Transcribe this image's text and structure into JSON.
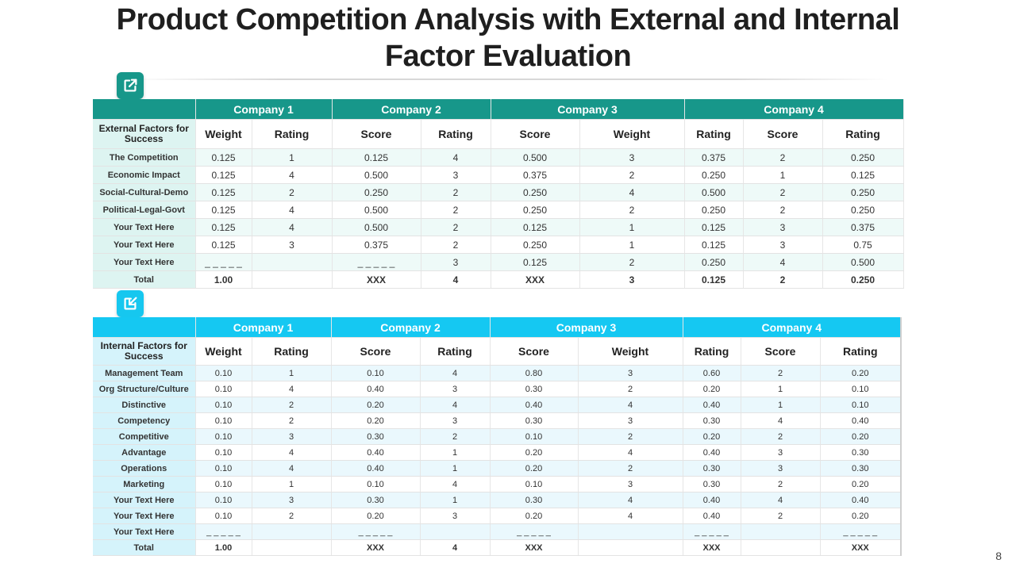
{
  "title_line1": "Product Competition Analysis with External and Internal",
  "title_line2": "Factor Evaluation",
  "page_number": "8",
  "colors": {
    "external_accent": "#17978a",
    "internal_accent": "#15c8f2"
  },
  "icons": {
    "external": "external-link-icon",
    "internal": "import-arrow-icon"
  },
  "external": {
    "companies": [
      "Company 1",
      "Company 2",
      "Company 3",
      "Company 4"
    ],
    "label_header": "External Factors for Success",
    "columns": [
      "Weight",
      "Rating",
      "Score",
      "Rating",
      "Score",
      "Weight",
      "Rating",
      "Score",
      "Rating"
    ],
    "rows": [
      [
        "The Competition",
        "0.125",
        "1",
        "0.125",
        "4",
        "0.500",
        "3",
        "0.375",
        "2",
        "0.250"
      ],
      [
        "Economic Impact",
        "0.125",
        "4",
        "0.500",
        "3",
        "0.375",
        "2",
        "0.250",
        "1",
        "0.125"
      ],
      [
        "Social-Cultural-Demo",
        "0.125",
        "2",
        "0.250",
        "2",
        "0.250",
        "4",
        "0.500",
        "2",
        "0.250"
      ],
      [
        "Political-Legal-Govt",
        "0.125",
        "4",
        "0.500",
        "2",
        "0.250",
        "2",
        "0.250",
        "2",
        "0.250"
      ],
      [
        "Your Text Here",
        "0.125",
        "4",
        "0.500",
        "2",
        "0.125",
        "1",
        "0.125",
        "3",
        "0.375"
      ],
      [
        "Your Text Here",
        "0.125",
        "3",
        "0.375",
        "2",
        "0.250",
        "1",
        "0.125",
        "3",
        "0.75"
      ],
      [
        "Your Text Here",
        "_ _ _ _ _",
        "",
        "_ _ _ _ _",
        "3",
        "0.125",
        "2",
        "0.250",
        "4",
        "0.500"
      ],
      [
        "Total",
        "1.00",
        "",
        "XXX",
        "4",
        "XXX",
        "3",
        "0.125",
        "2",
        "0.250"
      ]
    ]
  },
  "internal": {
    "companies": [
      "Company 1",
      "Company 2",
      "Company 3",
      "Company 4"
    ],
    "label_header": "Internal Factors for Success",
    "columns": [
      "Weight",
      "Rating",
      "Score",
      "Rating",
      "Score",
      "Weight",
      "Rating",
      "Score",
      "Rating"
    ],
    "rows": [
      [
        "Management Team",
        "0.10",
        "1",
        "0.10",
        "4",
        "0.80",
        "3",
        "0.60",
        "2",
        "0.20"
      ],
      [
        "Org Structure/Culture",
        "0.10",
        "4",
        "0.40",
        "3",
        "0.30",
        "2",
        "0.20",
        "1",
        "0.10"
      ],
      [
        "Distinctive",
        "0.10",
        "2",
        "0.20",
        "4",
        "0.40",
        "4",
        "0.40",
        "1",
        "0.10"
      ],
      [
        "Competency",
        "0.10",
        "2",
        "0.20",
        "3",
        "0.30",
        "3",
        "0.30",
        "4",
        "0.40"
      ],
      [
        "Competitive",
        "0.10",
        "3",
        "0.30",
        "2",
        "0.10",
        "2",
        "0.20",
        "2",
        "0.20"
      ],
      [
        "Advantage",
        "0.10",
        "4",
        "0.40",
        "1",
        "0.20",
        "4",
        "0.40",
        "3",
        "0.30"
      ],
      [
        "Operations",
        "0.10",
        "4",
        "0.40",
        "1",
        "0.20",
        "2",
        "0.30",
        "3",
        "0.30"
      ],
      [
        "Marketing",
        "0.10",
        "1",
        "0.10",
        "4",
        "0.10",
        "3",
        "0.30",
        "2",
        "0.20"
      ],
      [
        "Your Text Here",
        "0.10",
        "3",
        "0.30",
        "1",
        "0.30",
        "4",
        "0.40",
        "4",
        "0.40"
      ],
      [
        "Your Text Here",
        "0.10",
        "2",
        "0.20",
        "3",
        "0.20",
        "4",
        "0.40",
        "2",
        "0.20"
      ],
      [
        "Your Text Here",
        "_ _ _ _ _",
        "",
        "_ _ _ _ _",
        "",
        "_ _ _ _ _",
        "",
        "_ _ _ _ _",
        "",
        "_ _ _ _ _"
      ],
      [
        "Total",
        "1.00",
        "",
        "XXX",
        "4",
        "XXX",
        "",
        "XXX",
        "",
        "XXX"
      ]
    ]
  }
}
